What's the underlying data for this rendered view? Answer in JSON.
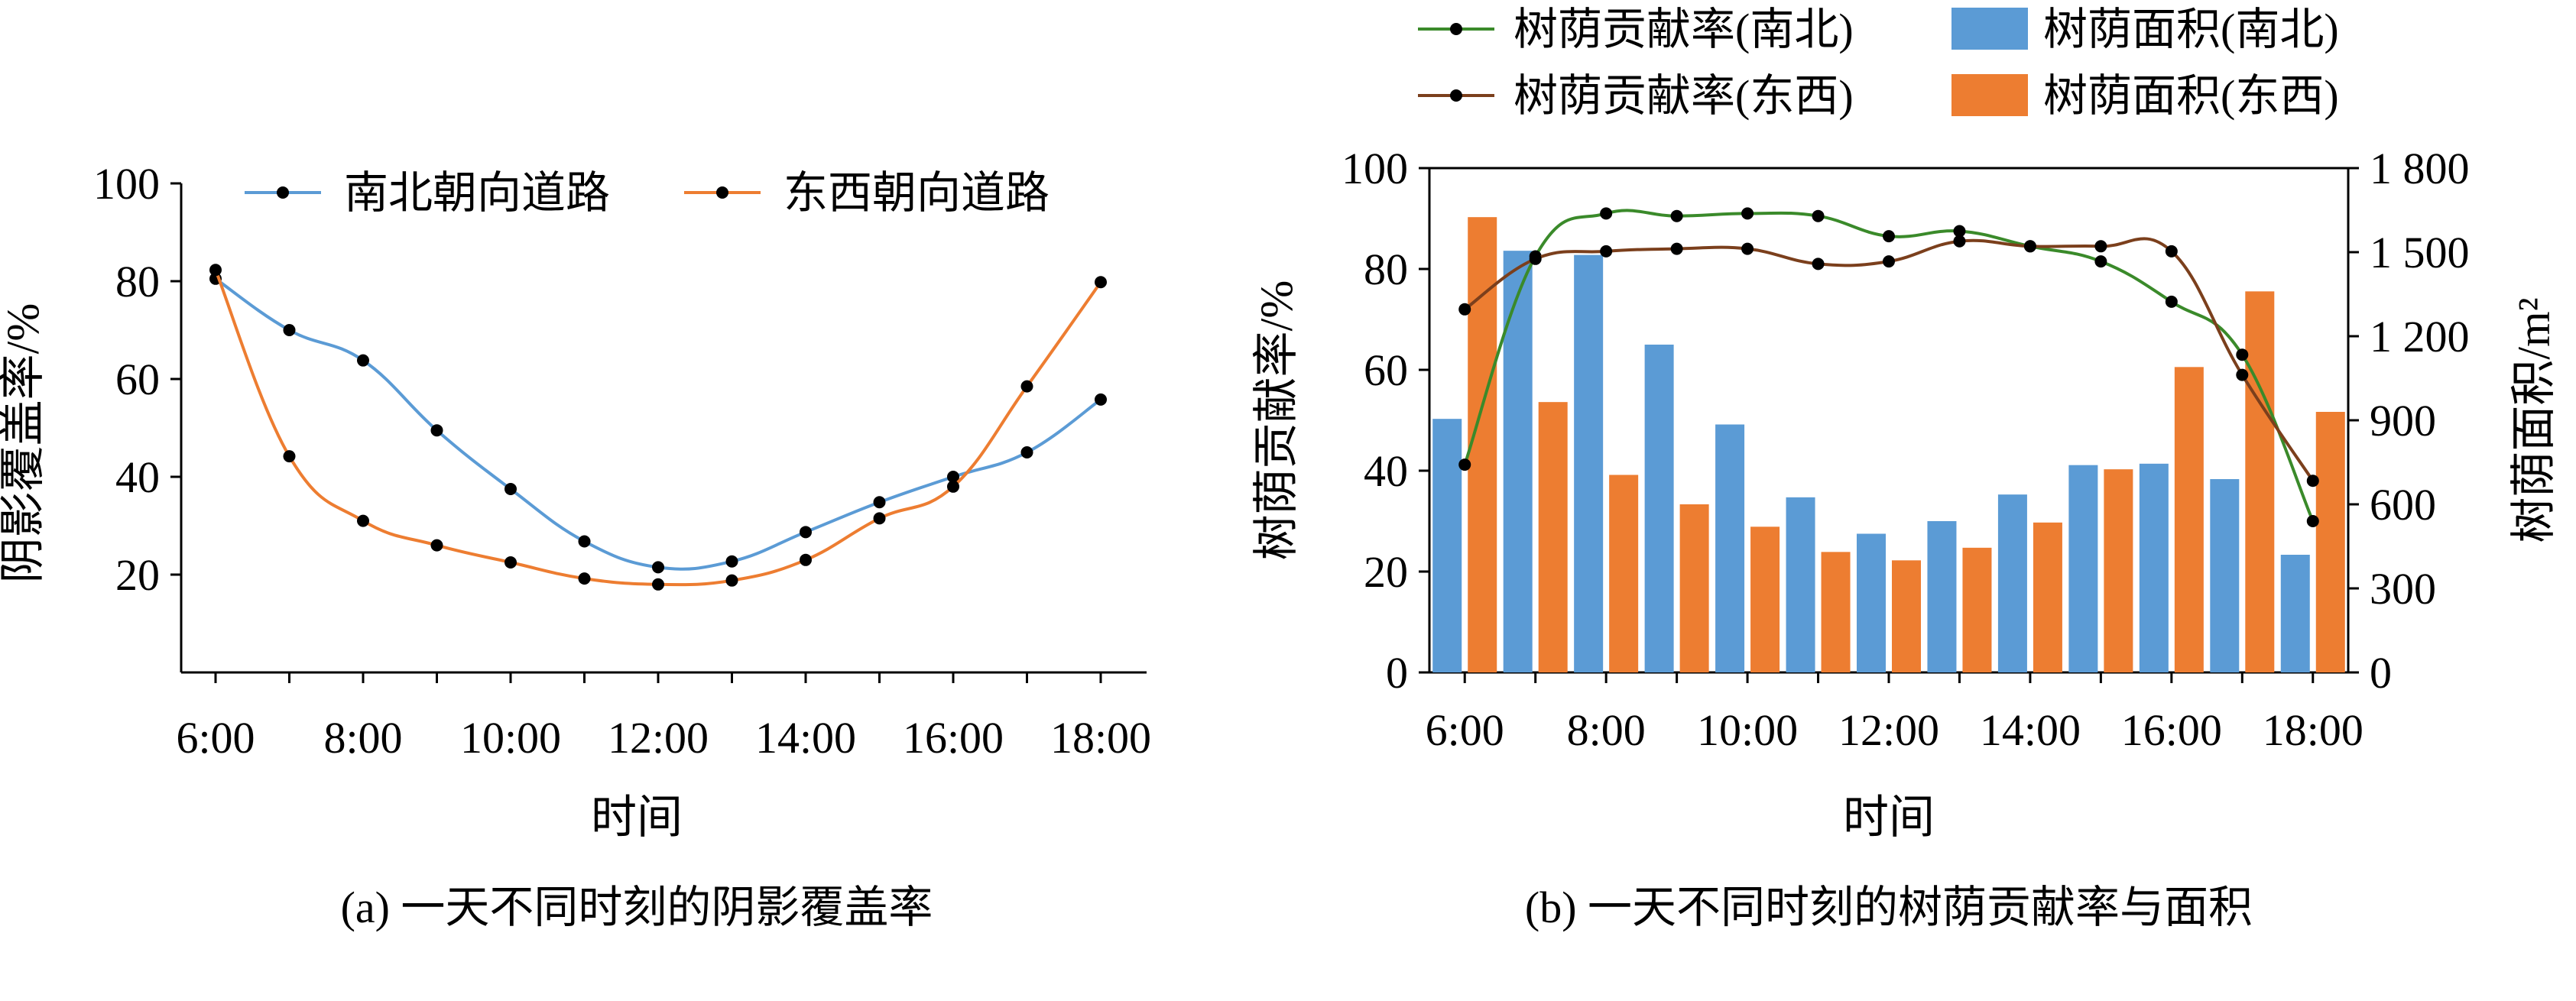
{
  "chart_data": [
    {
      "type": "line",
      "caption": "(a) 一天不同时刻的阴影覆盖率",
      "xlabel": "时间",
      "ylabel": "阴影覆盖率/%",
      "x": [
        6,
        7,
        8,
        9,
        10,
        11,
        12,
        13,
        14,
        15,
        16,
        17,
        18
      ],
      "xticks": [
        "6:00",
        "8:00",
        "10:00",
        "12:00",
        "14:00",
        "16:00",
        "18:00"
      ],
      "ylim": [
        0,
        100
      ],
      "yticks": [
        "20",
        "40",
        "60",
        "80",
        "100"
      ],
      "legend_position": "top",
      "series": [
        {
          "name": "南北朝向道路",
          "color": "#5b9bd5",
          "values": [
            80.5,
            70,
            63.8,
            49.5,
            37.5,
            26.8,
            21.5,
            22.7,
            28.7,
            34.8,
            40,
            45,
            55.8
          ]
        },
        {
          "name": "东西朝向道路",
          "color": "#ed7d31",
          "values": [
            82.3,
            44.2,
            31,
            26,
            22.5,
            19.2,
            18,
            18.8,
            23,
            31.5,
            38,
            58.5,
            79.8
          ]
        }
      ]
    },
    {
      "type": "bar+line",
      "caption": "(b) 一天不同时刻的树荫贡献率与面积",
      "xlabel": "时间",
      "ylabel": "树荫贡献率/%",
      "y2label": "树荫面积/m²",
      "x": [
        6,
        7,
        8,
        9,
        10,
        11,
        12,
        13,
        14,
        15,
        16,
        17,
        18
      ],
      "xticks": [
        "6:00",
        "8:00",
        "10:00",
        "12:00",
        "14:00",
        "16:00",
        "18:00"
      ],
      "ylim": [
        0,
        100
      ],
      "yticks": [
        "0",
        "20",
        "40",
        "60",
        "80",
        "100"
      ],
      "y2lim": [
        0,
        1800
      ],
      "y2ticks": [
        "0",
        "300",
        "600",
        "900",
        "1 200",
        "1 500",
        "1 800"
      ],
      "legend_position": "top",
      "bars": [
        {
          "name": "树荫面积(南北)",
          "color": "#5b9bd5",
          "values": [
            905,
            1505,
            1490,
            1170,
            885,
            625,
            495,
            540,
            635,
            740,
            745,
            690,
            420
          ]
        },
        {
          "name": "树荫面积(东西)",
          "color": "#ed7d31",
          "values": [
            1625,
            965,
            705,
            600,
            520,
            430,
            400,
            445,
            535,
            725,
            1090,
            1360,
            930
          ]
        }
      ],
      "lines": [
        {
          "name": "树荫贡献率(南北)",
          "color": "#3a8a2a",
          "values": [
            41.2,
            82.5,
            91,
            90.5,
            91,
            90.5,
            86.5,
            87.5,
            84.5,
            81.5,
            73.5,
            63,
            30
          ]
        },
        {
          "name": "树荫贡献率(东西)",
          "color": "#7b3f1c",
          "values": [
            72,
            82,
            83.5,
            84,
            84,
            81,
            81.5,
            85.5,
            84.5,
            84.5,
            83.5,
            59,
            38
          ]
        }
      ]
    }
  ]
}
